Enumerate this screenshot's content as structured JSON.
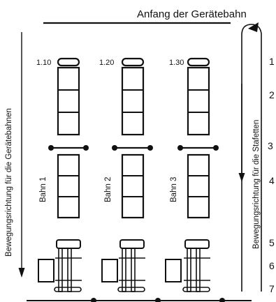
{
  "title": "Anfang der Gerätebahn",
  "left_axis_label": "Bewegungsrichtung für die Gerätebahnen",
  "right_axis_label": "Bewegungsrichtung für die Stafetten",
  "lanes": [
    {
      "name": "Bahn 1",
      "number": "1.10"
    },
    {
      "name": "Bahn 2",
      "number": "1.20"
    },
    {
      "name": "Bahn 3",
      "number": "1.30"
    }
  ],
  "station_numbers": [
    "1",
    "2",
    "3",
    "4",
    "5",
    "6",
    "7"
  ],
  "colors": {
    "ink": "#111111",
    "paper": "#ffffff"
  }
}
